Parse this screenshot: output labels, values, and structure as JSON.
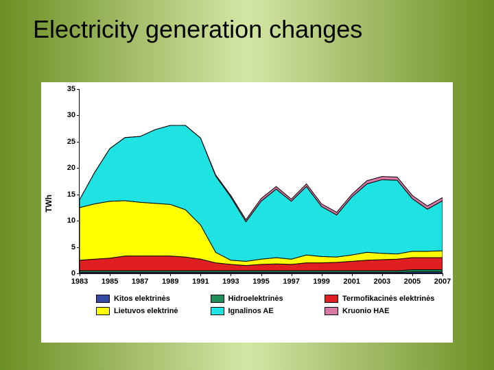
{
  "title": "Electricity generation changes",
  "chart": {
    "type": "area-stacked",
    "ylabel": "TWh",
    "background_color": "#ffffff",
    "ylim": [
      0,
      35
    ],
    "ytick_step": 5,
    "yticks": [
      0,
      5,
      10,
      15,
      20,
      25,
      30,
      35
    ],
    "years": [
      1983,
      1984,
      1985,
      1986,
      1987,
      1988,
      1989,
      1990,
      1991,
      1992,
      1993,
      1994,
      1995,
      1996,
      1997,
      1998,
      1999,
      2000,
      2001,
      2002,
      2003,
      2004,
      2005,
      2006,
      2007
    ],
    "xticks": [
      1983,
      1985,
      1987,
      1989,
      1991,
      1993,
      1995,
      1997,
      1999,
      2001,
      2003,
      2005,
      2007
    ],
    "series": [
      {
        "key": "kitos",
        "label": "Kitos elektrinės",
        "color": "#3349a3",
        "values": [
          0.2,
          0.2,
          0.2,
          0.2,
          0.2,
          0.2,
          0.2,
          0.2,
          0.2,
          0.2,
          0.2,
          0.2,
          0.2,
          0.2,
          0.2,
          0.2,
          0.2,
          0.2,
          0.2,
          0.2,
          0.2,
          0.2,
          0.3,
          0.3,
          0.3
        ]
      },
      {
        "key": "hidro",
        "label": "Hidroelektrinės",
        "color": "#1e8f5b",
        "values": [
          0.3,
          0.3,
          0.3,
          0.3,
          0.3,
          0.3,
          0.3,
          0.3,
          0.3,
          0.3,
          0.3,
          0.3,
          0.3,
          0.3,
          0.3,
          0.3,
          0.3,
          0.3,
          0.3,
          0.3,
          0.3,
          0.3,
          0.4,
          0.4,
          0.4
        ]
      },
      {
        "key": "termo",
        "label": "Termofikacinės elektrinės",
        "color": "#e02020",
        "values": [
          2.0,
          2.2,
          2.4,
          2.8,
          2.8,
          2.8,
          2.8,
          2.6,
          2.2,
          1.5,
          1.2,
          1.0,
          1.2,
          1.3,
          1.2,
          1.5,
          1.5,
          1.6,
          1.8,
          2.0,
          2.1,
          2.2,
          2.3,
          2.3,
          2.3
        ]
      },
      {
        "key": "lietuvos",
        "label": "Lietuvos elektrinė",
        "color": "#ffff00",
        "values": [
          10.0,
          10.5,
          10.8,
          10.5,
          10.2,
          10.0,
          9.8,
          9.0,
          6.5,
          2.0,
          0.8,
          0.8,
          1.0,
          1.2,
          1.0,
          1.5,
          1.2,
          1.0,
          1.2,
          1.5,
          1.2,
          1.0,
          1.2,
          1.2,
          1.3
        ]
      },
      {
        "key": "ignalinos",
        "label": "Ignalinos AE",
        "color": "#1fe3e3",
        "values": [
          1.5,
          6.0,
          10.0,
          12.0,
          12.5,
          14.0,
          15.0,
          16.0,
          16.5,
          14.5,
          12.0,
          7.5,
          11.0,
          13.0,
          11.0,
          13.0,
          9.5,
          8.0,
          11.0,
          13.0,
          14.0,
          14.0,
          10.0,
          8.0,
          9.5
        ]
      },
      {
        "key": "kruonio",
        "label": "Kruonio HAE",
        "color": "#d97aa6",
        "values": [
          0,
          0,
          0,
          0,
          0,
          0,
          0,
          0,
          0,
          0.2,
          0.3,
          0.4,
          0.5,
          0.5,
          0.4,
          0.5,
          0.5,
          0.5,
          0.5,
          0.6,
          0.6,
          0.6,
          0.6,
          0.6,
          0.6
        ]
      }
    ],
    "legend_rows": [
      [
        "kitos",
        "hidro",
        "termo"
      ],
      [
        "lietuvos",
        "ignalinos",
        "kruonio"
      ]
    ]
  }
}
